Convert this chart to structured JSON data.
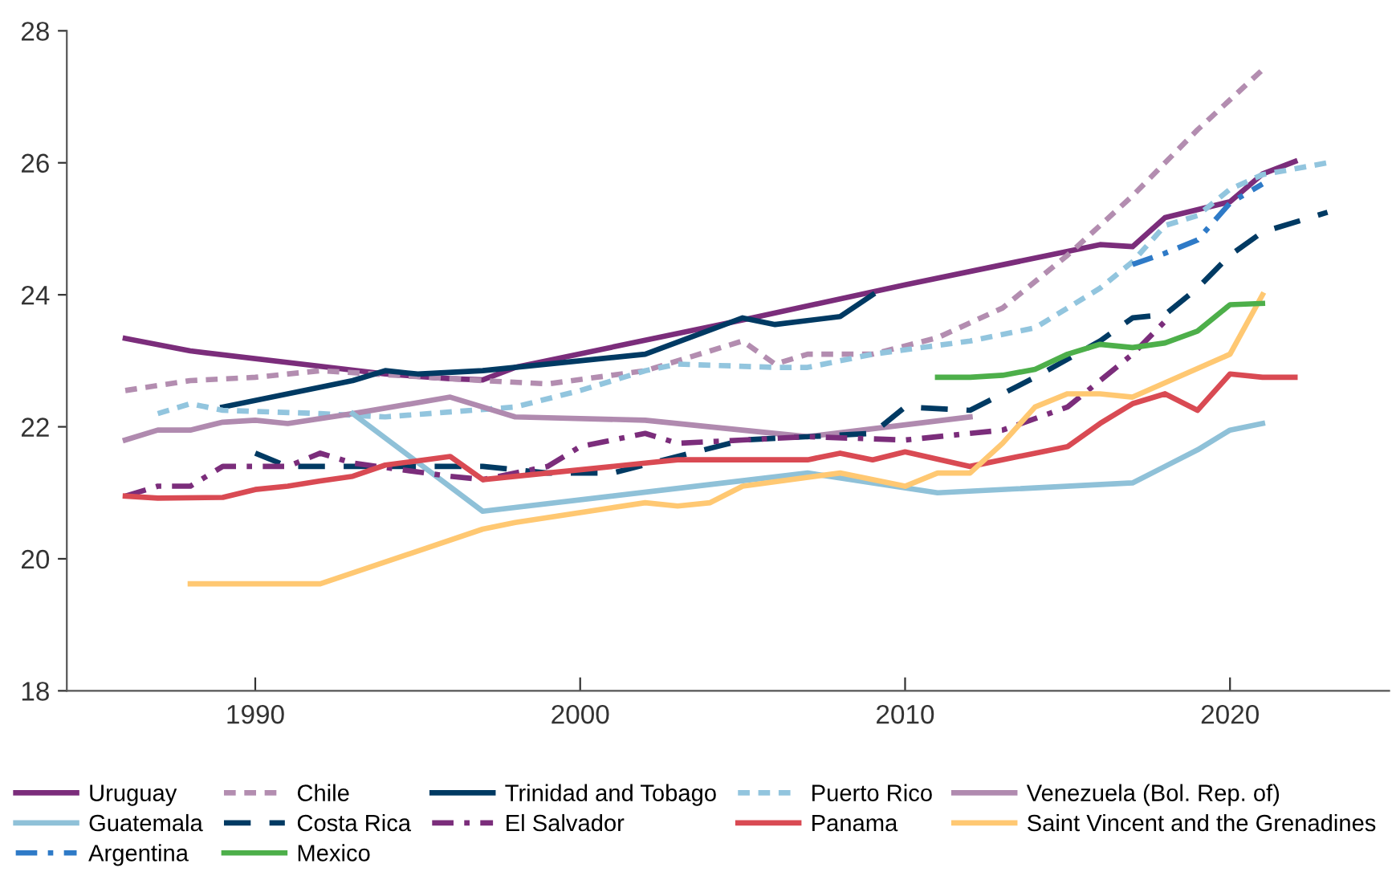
{
  "chart_data": {
    "type": "line",
    "xlim": [
      1984.2,
      2024.9
    ],
    "ylim": [
      18,
      28
    ],
    "xticks": [
      1990,
      2000,
      2010,
      2020
    ],
    "yticks": [
      18,
      20,
      22,
      24,
      26,
      28
    ],
    "grid": false,
    "legend": "bottom",
    "marker": "none",
    "series": [
      {
        "name": "Uruguay",
        "color": "#7b2d7b",
        "line_style": "solid",
        "x": [
          1986,
          1988,
          1994,
          1996,
          1997,
          1998,
          2005,
          2010,
          2016,
          2017,
          2018,
          2020,
          2021,
          2022
        ],
        "values": [
          23.34,
          23.15,
          22.8,
          22.73,
          22.71,
          22.9,
          23.62,
          24.15,
          24.76,
          24.73,
          25.17,
          25.41,
          25.83,
          26.02
        ]
      },
      {
        "name": "Chile",
        "color": "#b38db0",
        "line_style": "dotted",
        "x": [
          1986,
          1988,
          1990,
          1992,
          1997,
          1999,
          2002,
          2005,
          2006,
          2007,
          2009,
          2011,
          2013,
          2015,
          2017,
          2019,
          2021
        ],
        "values": [
          22.55,
          22.7,
          22.75,
          22.85,
          22.7,
          22.65,
          22.85,
          23.3,
          22.95,
          23.1,
          23.1,
          23.35,
          23.8,
          24.6,
          25.5,
          26.5,
          27.41
        ]
      },
      {
        "name": "Trinidad and Tobago",
        "color": "#003a63",
        "line_style": "solid",
        "x": [
          1989,
          1993,
          1994,
          1995,
          1997,
          2002,
          2005,
          2006,
          2008,
          2009
        ],
        "values": [
          22.3,
          22.7,
          22.85,
          22.8,
          22.85,
          23.1,
          23.65,
          23.55,
          23.67,
          24.0
        ]
      },
      {
        "name": "Puerto Rico",
        "color": "#92c5de",
        "line_style": "dotted",
        "x": [
          1987,
          1988,
          1989,
          1992,
          1994,
          1998,
          2000,
          2002,
          2003,
          2006,
          2007,
          2009,
          2012,
          2014,
          2016,
          2017,
          2018,
          2019,
          2020,
          2021,
          2023
        ],
        "values": [
          22.2,
          22.35,
          22.25,
          22.2,
          22.15,
          22.3,
          22.55,
          22.85,
          22.95,
          22.9,
          22.9,
          23.1,
          23.3,
          23.5,
          24.1,
          24.5,
          25.05,
          25.2,
          25.6,
          25.82,
          26.0
        ]
      },
      {
        "name": "Venezuela (Bol. Rep. of)",
        "color": "#b08aaf",
        "line_style": "solid",
        "x": [
          1986,
          1987,
          1988,
          1989,
          1990,
          1991,
          1993,
          1996,
          1998,
          2002,
          2004,
          2007,
          2012
        ],
        "values": [
          21.8,
          21.95,
          21.95,
          22.07,
          22.1,
          22.05,
          22.2,
          22.45,
          22.15,
          22.1,
          22.0,
          21.85,
          22.15
        ]
      },
      {
        "name": "Guatemala",
        "color": "#8fc1d8",
        "line_style": "solid",
        "x": [
          1993,
          1997,
          2007,
          2009,
          2011,
          2017,
          2018,
          2019,
          2020,
          2021
        ],
        "values": [
          22.2,
          20.72,
          21.3,
          21.15,
          21.0,
          21.15,
          21.4,
          21.65,
          21.95,
          22.05
        ]
      },
      {
        "name": "Costa Rica",
        "color": "#003a63",
        "line_style": "dashed",
        "x": [
          1990,
          1991,
          1997,
          1999,
          2001,
          2005,
          2009,
          2010,
          2012,
          2014,
          2016,
          2017,
          2018,
          2019,
          2020,
          2021,
          2023
        ],
        "values": [
          21.6,
          21.4,
          21.4,
          21.3,
          21.3,
          21.8,
          21.9,
          22.3,
          22.25,
          22.75,
          23.3,
          23.65,
          23.7,
          24.1,
          24.6,
          24.95,
          25.25
        ]
      },
      {
        "name": "El Salvador",
        "color": "#7b2d7b",
        "line_style": "dashdot",
        "x": [
          1986,
          1987,
          1988,
          1989,
          1991,
          1992,
          1993,
          1996,
          1997,
          1999,
          2000,
          2002,
          2003,
          2005,
          2007,
          2010,
          2013,
          2015,
          2017,
          2018
        ],
        "values": [
          20.95,
          21.1,
          21.1,
          21.4,
          21.4,
          21.6,
          21.45,
          21.25,
          21.2,
          21.4,
          21.7,
          21.9,
          21.75,
          21.8,
          21.85,
          21.8,
          21.95,
          22.3,
          23.1,
          23.6
        ]
      },
      {
        "name": "Panama",
        "color": "#d94a53",
        "line_style": "solid",
        "x": [
          1986,
          1987,
          1989,
          1990,
          1991,
          1992,
          1993,
          1994,
          1996,
          1997,
          1999,
          2002,
          2003,
          2007,
          2008,
          2009,
          2010,
          2012,
          2014,
          2015,
          2016,
          2017,
          2018,
          2019,
          2020,
          2021,
          2022
        ],
        "values": [
          20.95,
          20.92,
          20.93,
          21.05,
          21.1,
          21.18,
          21.25,
          21.42,
          21.55,
          21.2,
          21.3,
          21.45,
          21.5,
          21.5,
          21.6,
          21.5,
          21.62,
          21.4,
          21.6,
          21.7,
          22.05,
          22.35,
          22.5,
          22.25,
          22.8,
          22.75,
          22.75
        ]
      },
      {
        "name": "Saint Vincent and the Grenadines",
        "color": "#ffc872",
        "line_style": "solid",
        "x": [
          1988,
          1992,
          1997,
          1998,
          2002,
          2003,
          2004,
          2005,
          2008,
          2010,
          2011,
          2012,
          2013,
          2014,
          2015,
          2016,
          2017,
          2020,
          2021
        ],
        "values": [
          19.62,
          19.62,
          20.45,
          20.55,
          20.85,
          20.8,
          20.85,
          21.1,
          21.3,
          21.1,
          21.3,
          21.3,
          21.75,
          22.3,
          22.5,
          22.5,
          22.45,
          23.1,
          24.0
        ]
      },
      {
        "name": "Argentina",
        "color": "#2e7ac7",
        "line_style": "dashdot",
        "x": [
          2017,
          2018,
          2019,
          2020,
          2021
        ],
        "values": [
          24.46,
          24.63,
          24.83,
          25.39,
          25.68
        ]
      },
      {
        "name": "Mexico",
        "color": "#4daf4a",
        "line_style": "solid",
        "x": [
          2011,
          2012,
          2013,
          2014,
          2015,
          2016,
          2017,
          2018,
          2019,
          2020,
          2021
        ],
        "values": [
          22.75,
          22.75,
          22.78,
          22.87,
          23.1,
          23.25,
          23.2,
          23.27,
          23.45,
          23.85,
          23.87
        ]
      }
    ]
  }
}
